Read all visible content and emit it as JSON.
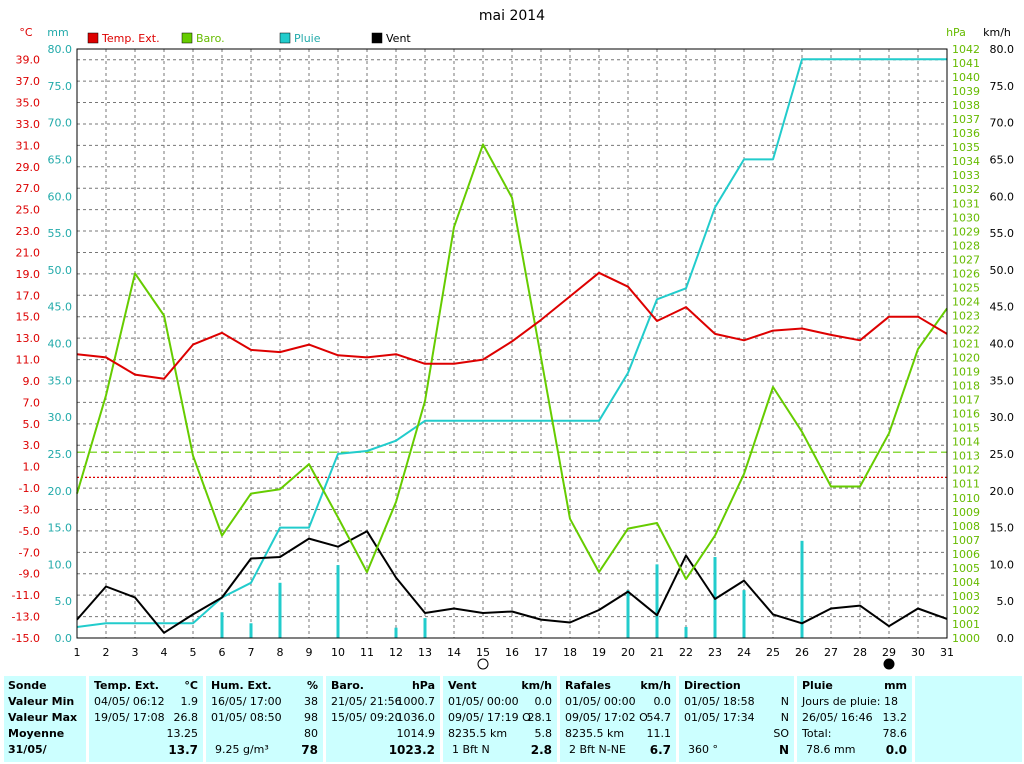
{
  "chart_data": {
    "type": "line",
    "title": "mai 2014",
    "x": [
      1,
      2,
      3,
      4,
      5,
      6,
      7,
      8,
      9,
      10,
      11,
      12,
      13,
      14,
      15,
      16,
      17,
      18,
      19,
      20,
      21,
      22,
      23,
      24,
      25,
      26,
      27,
      28,
      29,
      30,
      31
    ],
    "axes": {
      "temp": {
        "unit": "°C",
        "min": -15,
        "max": 40,
        "ticks": [
          "39.0",
          "37.0",
          "35.0",
          "33.0",
          "31.0",
          "29.0",
          "27.0",
          "25.0",
          "23.0",
          "21.0",
          "19.0",
          "17.0",
          "15.0",
          "13.0",
          "11.0",
          "9.0",
          "7.0",
          "5.0",
          "3.0",
          "1.0",
          "-1.0",
          "-3.0",
          "-5.0",
          "-7.0",
          "-9.0",
          "-11.0",
          "-13.0",
          "-15.0"
        ]
      },
      "rain": {
        "unit": "mm",
        "min": 0,
        "max": 80,
        "ticks": [
          "80.0",
          "75.0",
          "70.0",
          "65.0",
          "60.0",
          "55.0",
          "50.0",
          "45.0",
          "40.0",
          "35.0",
          "30.0",
          "25.0",
          "20.0",
          "15.0",
          "10.0",
          "5.0",
          "0.0"
        ]
      },
      "baro": {
        "unit": "hPa",
        "min": 1000,
        "max": 1042,
        "ticks": [
          "1042",
          "1041",
          "1040",
          "1039",
          "1038",
          "1037",
          "1036",
          "1035",
          "1034",
          "1033",
          "1032",
          "1031",
          "1030",
          "1029",
          "1028",
          "1027",
          "1026",
          "1025",
          "1024",
          "1023",
          "1022",
          "1021",
          "1020",
          "1019",
          "1018",
          "1017",
          "1016",
          "1015",
          "1014",
          "1013",
          "1012",
          "1011",
          "1010",
          "1009",
          "1008",
          "1007",
          "1006",
          "1005",
          "1004",
          "1003",
          "1002",
          "1001",
          "1000"
        ]
      },
      "wind": {
        "unit": "km/h",
        "min": 0,
        "max": 80,
        "ticks": [
          "80.0",
          "75.0",
          "70.0",
          "65.0",
          "60.0",
          "55.0",
          "50.0",
          "45.0",
          "40.0",
          "35.0",
          "30.0",
          "25.0",
          "20.0",
          "15.0",
          "10.0",
          "5.0",
          "0.0"
        ]
      }
    },
    "series": [
      {
        "name": "Temp. Ext.",
        "axis": "temp",
        "color": "#dd0000",
        "values": [
          11.5,
          11.2,
          9.6,
          9.2,
          12.4,
          13.5,
          11.9,
          11.7,
          12.4,
          11.4,
          11.2,
          11.5,
          10.6,
          10.6,
          11.0,
          12.7,
          14.7,
          16.9,
          19.1,
          17.8,
          14.6,
          15.9,
          13.4,
          12.8,
          13.7,
          13.9,
          13.3,
          12.8,
          15.0,
          15.0,
          13.4
        ]
      },
      {
        "name": "Baro.",
        "axis": "baro",
        "color": "#66cc00",
        "values": [
          1010.3,
          1017.3,
          1026.0,
          1023.0,
          1013.0,
          1007.3,
          1010.3,
          1010.6,
          1012.4,
          1008.6,
          1004.7,
          1009.7,
          1016.9,
          1029.3,
          1035.2,
          1031.4,
          1020.0,
          1008.5,
          1004.7,
          1007.8,
          1008.2,
          1004.2,
          1007.3,
          1011.7,
          1017.9,
          1014.7,
          1010.8,
          1010.8,
          1014.6,
          1020.6,
          1023.5
        ]
      },
      {
        "name": "Pluie",
        "axis": "rain",
        "color": "#22cccc",
        "values": [
          1.5,
          2.0,
          2.0,
          2.0,
          2.0,
          5.5,
          7.5,
          15.0,
          15.0,
          25.0,
          25.4,
          26.8,
          29.5,
          29.5,
          29.5,
          29.5,
          29.5,
          29.5,
          29.5,
          36.0,
          46.0,
          47.5,
          58.5,
          65.0,
          65.0,
          78.6,
          78.6,
          78.6,
          78.6,
          78.6,
          78.6
        ]
      },
      {
        "name": "Vent",
        "axis": "wind",
        "color": "#000000",
        "values": [
          2.5,
          7.0,
          5.5,
          0.7,
          3.2,
          5.5,
          10.8,
          11.0,
          13.5,
          12.4,
          14.5,
          8.2,
          3.4,
          4.0,
          3.4,
          3.6,
          2.5,
          2.1,
          3.8,
          6.3,
          3.1,
          11.2,
          5.3,
          7.8,
          3.2,
          2.0,
          4.0,
          4.4,
          1.6,
          4.0,
          2.6
        ]
      },
      {
        "name": "Pluie journalière",
        "axis": "rain",
        "color": "#22cccc",
        "style": "bar",
        "values": [
          0,
          0,
          0,
          0,
          0,
          3.5,
          2.0,
          7.5,
          0,
          9.9,
          0,
          1.4,
          2.7,
          0,
          0,
          0,
          0,
          0,
          0,
          6.5,
          10.0,
          1.5,
          11.0,
          6.5,
          0,
          13.2,
          0,
          0,
          0,
          0,
          0
        ]
      }
    ],
    "reference_lines": [
      {
        "axis": "baro",
        "value": 1013.25,
        "color": "#66cc00",
        "style": "dashed"
      },
      {
        "axis": "temp",
        "value": 0,
        "color": "#dd0000",
        "style": "dotted"
      }
    ],
    "moon_markers": [
      {
        "day": 15,
        "phase": "full"
      },
      {
        "day": 29,
        "phase": "new"
      }
    ],
    "legend": [
      {
        "label": "Temp. Ext.",
        "color": "#dd0000"
      },
      {
        "label": "Baro.",
        "color": "#66cc00"
      },
      {
        "label": "Pluie",
        "color": "#22cccc"
      },
      {
        "label": "Vent",
        "color": "#000000"
      }
    ],
    "grid": true,
    "legend_position": "top-left"
  },
  "summary": {
    "labels": {
      "title": "Sonde",
      "min": "Valeur Min",
      "max": "Valeur Max",
      "avg": "Moyenne",
      "date": "31/05/"
    },
    "temp": {
      "title": "Temp. Ext.",
      "unit": "°C",
      "min_date": "04/05/ 06:12",
      "min_val": "1.9",
      "max_date": "19/05/ 17:08",
      "max_val": "26.8",
      "avg": "13.25",
      "current": "13.7"
    },
    "hum": {
      "title": "Hum. Ext.",
      "unit": "%",
      "min_date": "16/05/ 17:00",
      "min_val": "38",
      "max_date": "01/05/ 08:50",
      "max_val": "98",
      "avg": "80",
      "extra": "9.25 g/m³",
      "current": "78"
    },
    "baro": {
      "title": "Baro.",
      "unit": "hPa",
      "min_date": "21/05/ 21:56",
      "min_val": "1000.7",
      "max_date": "15/05/ 09:20",
      "max_val": "1036.0",
      "avg": "1014.9",
      "current": "1023.2"
    },
    "vent": {
      "title": "Vent",
      "unit": "km/h",
      "min_date": "01/05/ 00:00",
      "min_val": "0.0",
      "max_date": "09/05/ 17:19 O",
      "max_val": "28.1",
      "avg_left": "8235.5 km",
      "avg": "5.8",
      "cur_left": "1 Bft N",
      "current": "2.8"
    },
    "rafales": {
      "title": "Rafales",
      "unit": "km/h",
      "min_date": "01/05/ 00:00",
      "min_val": "0.0",
      "max_date": "09/05/ 17:02 O",
      "max_val": "54.7",
      "avg_left": "8235.5 km",
      "avg": "11.1",
      "cur_left": "2 Bft N-NE",
      "current": "6.7"
    },
    "direction": {
      "title": "Direction",
      "min_date": "01/05/ 18:58",
      "min_val": "N",
      "max_date": "01/05/ 17:34",
      "max_val": "N",
      "avg": "SO",
      "cur_left": "360 °",
      "current": "N"
    },
    "pluie": {
      "title": "Pluie",
      "unit": "mm",
      "days_label": "Jours de pluie: 18",
      "max_date": "26/05/ 16:46",
      "max_val": "13.2",
      "total_label": "Total:",
      "total": "78.6",
      "cur_left": "78.6 mm",
      "current": "0.0"
    }
  }
}
